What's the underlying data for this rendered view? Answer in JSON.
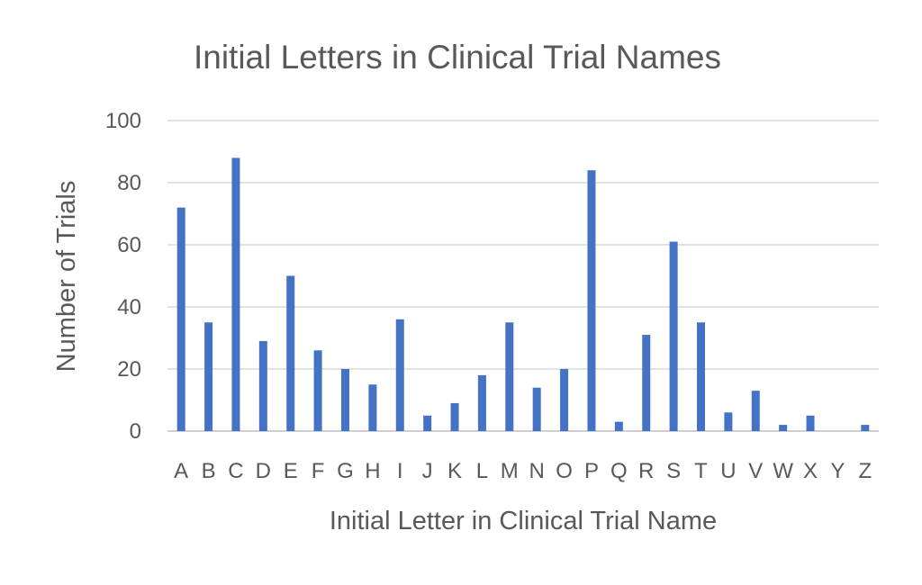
{
  "chart_data": {
    "type": "bar",
    "title": "Initial Letters in Clinical Trial Names",
    "xlabel": "Initial Letter in Clinical Trial Name",
    "ylabel": "Number of Trials",
    "categories": [
      "A",
      "B",
      "C",
      "D",
      "E",
      "F",
      "G",
      "H",
      "I",
      "J",
      "K",
      "L",
      "M",
      "N",
      "O",
      "P",
      "Q",
      "R",
      "S",
      "T",
      "U",
      "V",
      "W",
      "X",
      "Y",
      "Z"
    ],
    "values": [
      72,
      35,
      88,
      29,
      50,
      26,
      20,
      15,
      36,
      5,
      9,
      18,
      35,
      14,
      20,
      84,
      3,
      31,
      61,
      35,
      6,
      13,
      2,
      5,
      0,
      2
    ],
    "ylim": [
      0,
      100
    ],
    "yticks": [
      "0",
      "20",
      "40",
      "60",
      "80",
      "100"
    ],
    "grid": true,
    "legend": "none",
    "bar_color": "#4472c4",
    "grid_color": "#d9d9d9",
    "text_color": "#595959"
  }
}
